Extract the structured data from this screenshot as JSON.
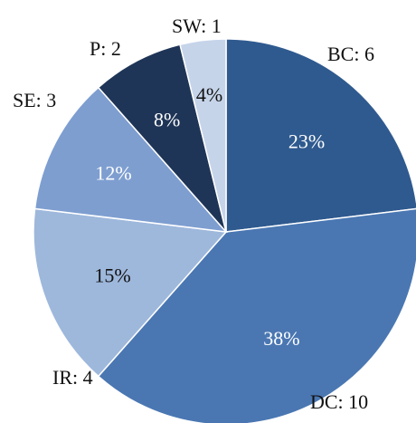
{
  "chart_data": {
    "type": "pie",
    "title": "",
    "slices": [
      {
        "category": "BC",
        "label": "BC: 6",
        "value": 6,
        "percent_label": "23%",
        "color": "#2f5a8f",
        "text_color": "#ffffff"
      },
      {
        "category": "DC",
        "label": "DC: 10",
        "value": 10,
        "percent_label": "38%",
        "color": "#4a77b2",
        "text_color": "#ffffff"
      },
      {
        "category": "IR",
        "label": "IR: 4",
        "value": 4,
        "percent_label": "15%",
        "color": "#9eb8dc",
        "text_color": "#111111"
      },
      {
        "category": "SE",
        "label": "SE: 3",
        "value": 3,
        "percent_label": "12%",
        "color": "#7e9ed0",
        "text_color": "#ffffff"
      },
      {
        "category": "P",
        "label": "P: 2",
        "value": 2,
        "percent_label": "8%",
        "color": "#1f3557",
        "text_color": "#ffffff"
      },
      {
        "category": "SW",
        "label": "SW: 1",
        "value": 1,
        "percent_label": "4%",
        "color": "#c6d4ea",
        "text_color": "#111111"
      }
    ],
    "start_angle_deg": 0,
    "direction": "clockwise",
    "legend": "none"
  }
}
